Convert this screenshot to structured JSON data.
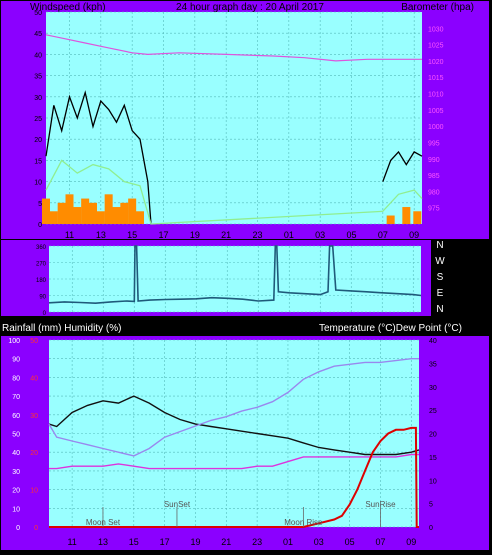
{
  "header": {
    "left": "Windspeed (kph)",
    "center": "24 hour graph day : 20 April 2017",
    "right": "Barometer (hpa)"
  },
  "mid_header": {
    "left": "Rainfall (mm)  Humidity (%)",
    "right": "Temperature (°C)Dew Point (°C)"
  },
  "time_labels": [
    "11",
    "13",
    "15",
    "17",
    "19",
    "21",
    "23",
    "01",
    "03",
    "05",
    "07",
    "09"
  ],
  "direction_labels": [
    "N",
    "W",
    "S",
    "E",
    "N"
  ],
  "colors": {
    "frame": "#8B00FF",
    "plot_bg": "#99FFFF",
    "grid": "#55BBBB",
    "wind": "#000000",
    "wind_avg": "#90EE90",
    "wind_low": "#FF8C00",
    "baro": "#DD55DD",
    "direction": "#1F5A7A",
    "temperature": "#111111",
    "humidity": "#9988EE",
    "dewpoint": "#DD33DD",
    "rain": "#DD0000"
  },
  "chart_data": [
    {
      "type": "line",
      "panel": "wind-barometer",
      "title": "24 hour graph day : 20 April 2017",
      "ylabel": "Windspeed (kph)",
      "y2label": "Barometer (hpa)",
      "ylim": [
        0,
        50
      ],
      "y_ticks": [
        0,
        5,
        10,
        15,
        20,
        25,
        30,
        35,
        40,
        45,
        50
      ],
      "y2lim": [
        970,
        1035
      ],
      "y2_ticks": [
        975,
        980,
        985,
        990,
        995,
        1000,
        1005,
        1010,
        1015,
        1020,
        1025,
        1030
      ],
      "series": [
        {
          "color_key": "baro",
          "axis": "y2",
          "x": [
            9.5,
            10.5,
            12,
            13.5,
            15,
            16,
            18,
            21,
            24,
            26,
            28,
            30,
            32,
            33.5
          ],
          "values": [
            1028,
            1027,
            1025.5,
            1024,
            1022.5,
            1022,
            1022.5,
            1022,
            1021.5,
            1021,
            1020,
            1020.5,
            1020.5,
            1020.5
          ]
        },
        {
          "color_key": "wind",
          "axis": "y",
          "style": "spiky",
          "x": [
            9.5,
            10,
            10.5,
            11,
            11.5,
            12,
            12.5,
            13,
            13.5,
            14,
            14.5,
            15,
            15.5,
            16,
            16.2
          ],
          "values": [
            16,
            28,
            22,
            30,
            25,
            31,
            23,
            29,
            27,
            24,
            28,
            22,
            20,
            10,
            0
          ]
        },
        {
          "color_key": "wind",
          "axis": "y",
          "style": "spiky",
          "x": [
            31,
            31.5,
            32,
            32.5,
            33,
            33.5
          ],
          "values": [
            10,
            15,
            17,
            14,
            17,
            16
          ]
        },
        {
          "color_key": "wind_avg",
          "axis": "y",
          "style": "spiky",
          "x": [
            9.5,
            10.5,
            11.5,
            12.5,
            13.5,
            14.5,
            15.5,
            16.2,
            31,
            32,
            33,
            33.5
          ],
          "values": [
            8,
            15,
            12,
            14,
            13,
            10,
            9,
            0,
            3,
            7,
            8,
            6
          ]
        },
        {
          "color_key": "wind_low",
          "axis": "y",
          "style": "bars",
          "x": [
            9.5,
            10,
            10.5,
            11,
            11.5,
            12,
            12.5,
            13,
            13.5,
            14,
            14.5,
            15,
            15.5,
            31.5,
            32.5,
            33.2
          ],
          "values": [
            6,
            3,
            5,
            7,
            4,
            6,
            5,
            3,
            7,
            4,
            5,
            6,
            3,
            2,
            4,
            3
          ]
        }
      ]
    },
    {
      "type": "line",
      "panel": "wind-direction",
      "ylim": [
        0,
        360
      ],
      "y_ticks": [
        0,
        90,
        180,
        270,
        360
      ],
      "series": [
        {
          "color_key": "direction",
          "x": [
            9.5,
            10.5,
            11.5,
            12.5,
            13.5,
            14.5,
            15,
            15.05,
            15.15,
            15.25,
            16,
            17,
            18,
            19,
            20,
            21,
            22,
            23,
            24,
            24.1,
            24.2,
            24.3,
            25,
            26,
            27,
            27.5,
            27.6,
            27.8,
            28,
            29,
            30,
            31,
            32,
            33,
            33.5
          ],
          "values": [
            50,
            55,
            52,
            48,
            55,
            60,
            58,
            380,
            380,
            60,
            65,
            68,
            70,
            72,
            78,
            75,
            70,
            60,
            65,
            375,
            375,
            110,
            105,
            100,
            95,
            110,
            370,
            370,
            120,
            115,
            110,
            105,
            100,
            95,
            90
          ]
        }
      ]
    },
    {
      "type": "line",
      "panel": "temp-humidity-rain",
      "ylabel": "Rainfall (mm)  Humidity (%)",
      "y2label": "Temperature (°C)Dew Point (°C)",
      "ylim": [
        0,
        100
      ],
      "y_ticks": [
        0,
        10,
        20,
        30,
        40,
        50,
        60,
        70,
        80,
        90,
        100
      ],
      "rain_ylim": [
        0,
        50
      ],
      "rain_ticks": [
        0,
        10,
        20,
        30,
        40,
        50
      ],
      "y2lim": [
        0,
        40
      ],
      "y2_ticks": [
        0,
        5,
        10,
        15,
        20,
        25,
        30,
        35,
        40
      ],
      "annotations": [
        {
          "label": "Moon Set",
          "x": 13.0
        },
        {
          "label": "SunSet",
          "x": 17.8
        },
        {
          "label": "Moon Rise",
          "x": 26.0
        },
        {
          "label": "SunRise",
          "x": 31.0
        }
      ],
      "series": [
        {
          "color_key": "temperature",
          "axis": "y2",
          "x": [
            9.5,
            10,
            11,
            12,
            13,
            14,
            15,
            16,
            17,
            18,
            19,
            20,
            21,
            22,
            23,
            24,
            25,
            26,
            27,
            28,
            29,
            30,
            31,
            32,
            33,
            33.5
          ],
          "values": [
            22,
            21.5,
            24.5,
            26,
            27,
            26.5,
            28,
            26.5,
            24.5,
            23,
            22,
            21.5,
            21,
            20.5,
            20,
            19.5,
            19,
            18,
            17,
            16.5,
            16,
            15.5,
            15.5,
            15.5,
            16,
            16.5
          ]
        },
        {
          "color_key": "humidity",
          "axis": "y",
          "x": [
            9.5,
            10,
            11,
            12,
            13,
            14,
            15,
            16,
            17,
            18,
            19,
            20,
            21,
            22,
            23,
            24,
            25,
            26,
            27,
            28,
            29,
            30,
            31,
            32,
            33,
            33.5
          ],
          "values": [
            55,
            48,
            46,
            44,
            42,
            40,
            38,
            42,
            48,
            51,
            54,
            57,
            59,
            62,
            64,
            67,
            72,
            79,
            83,
            86,
            87,
            88,
            88,
            89,
            90,
            90
          ]
        },
        {
          "color_key": "dewpoint",
          "axis": "y2",
          "x": [
            9.5,
            10,
            11,
            12,
            13,
            14,
            15,
            16,
            17,
            18,
            19,
            20,
            21,
            22,
            23,
            24,
            25,
            26,
            27,
            28,
            29,
            30,
            31,
            32,
            33,
            33.5
          ],
          "values": [
            12.5,
            12.5,
            13,
            13,
            13,
            13.5,
            13,
            12.5,
            12.5,
            12.5,
            12.5,
            12.5,
            12.5,
            12.5,
            13,
            13,
            14,
            15,
            15,
            15,
            15,
            15,
            15,
            15,
            15.5,
            15.5
          ]
        },
        {
          "color_key": "rain",
          "axis": "rain",
          "x": [
            9.5,
            20,
            26,
            27,
            28,
            28.5,
            29,
            29.5,
            30,
            30.5,
            31,
            31.5,
            32,
            32.5,
            33,
            33.3,
            33.35,
            33.5
          ],
          "values": [
            0,
            0,
            0,
            1,
            2,
            3,
            6,
            10,
            15,
            20,
            23,
            25,
            26,
            26,
            26.5,
            26.5,
            0,
            0
          ]
        }
      ]
    }
  ]
}
